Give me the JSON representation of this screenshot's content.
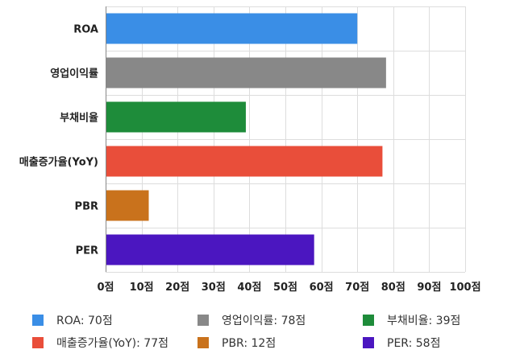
{
  "chart_data": {
    "type": "bar",
    "orientation": "horizontal",
    "categories": [
      "ROA",
      "영업이익률",
      "부채비율",
      "매출증가율(YoY)",
      "PBR",
      "PER"
    ],
    "values": [
      70,
      78,
      39,
      77,
      12,
      58
    ],
    "colors": [
      "#3a8ee6",
      "#888888",
      "#1e8c3a",
      "#e94e3a",
      "#c9721c",
      "#4b16c0"
    ],
    "xlim": [
      0,
      100
    ],
    "xticks": [
      0,
      10,
      20,
      30,
      40,
      50,
      60,
      70,
      80,
      90,
      100
    ],
    "tick_suffix": "점",
    "title": "",
    "xlabel": "",
    "ylabel": "",
    "grid": true,
    "legend_position": "bottom",
    "legend": [
      "ROA: 70점",
      "영업이익률: 78점",
      "부채비율: 39점",
      "매출증가율(YoY): 77점",
      "PBR: 12점",
      "PER: 58점"
    ]
  }
}
